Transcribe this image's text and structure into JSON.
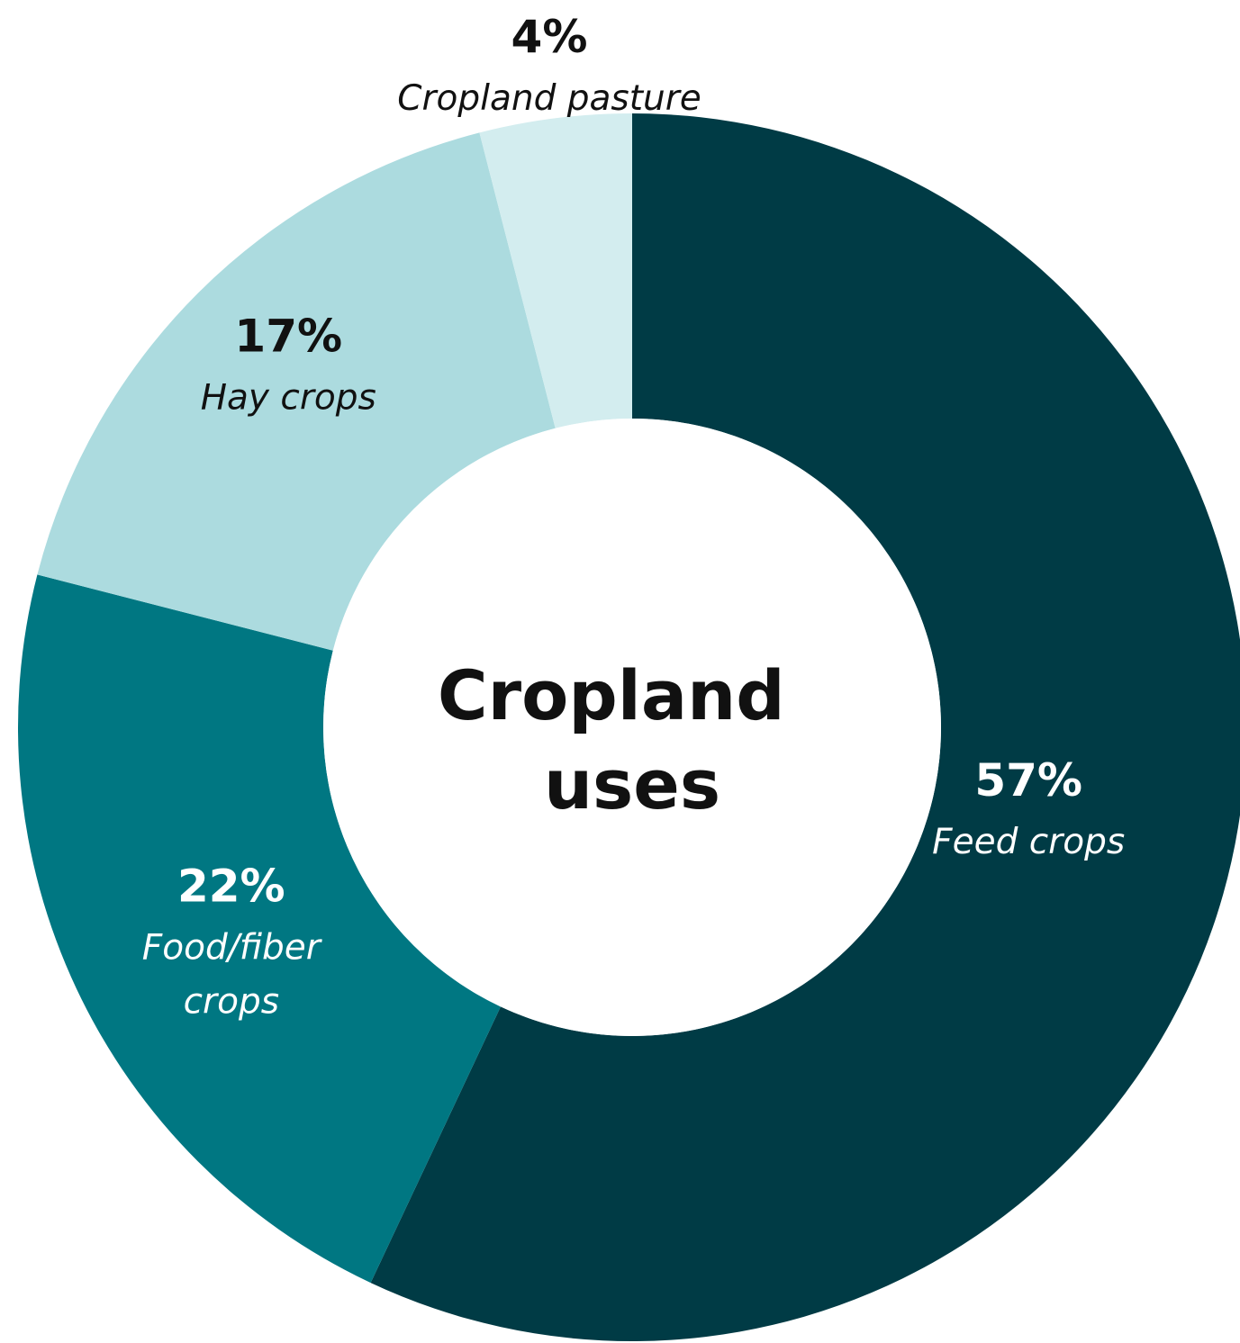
{
  "chart_data": {
    "type": "pie",
    "title": "Cropland uses",
    "title_lines": [
      "Cropland",
      "uses"
    ],
    "unit": "%",
    "slices": [
      {
        "label": "Feed crops",
        "label_lines": [
          "Feed crops"
        ],
        "value": 57,
        "value_label": "57%",
        "color": "#003B45",
        "text_color": "#ffffff"
      },
      {
        "label": "Food/fiber crops",
        "label_lines": [
          "Food/fiber",
          "crops"
        ],
        "value": 22,
        "value_label": "22%",
        "color": "#007782",
        "text_color": "#ffffff"
      },
      {
        "label": "Hay crops",
        "label_lines": [
          "Hay crops"
        ],
        "value": 17,
        "value_label": "17%",
        "color": "#ACDBDF",
        "text_color": "#111111"
      },
      {
        "label": "Cropland pasture",
        "label_lines": [
          "Cropland pasture"
        ],
        "value": 4,
        "value_label": "4%",
        "color": "#D3EDEF",
        "text_color": "#111111"
      }
    ]
  }
}
